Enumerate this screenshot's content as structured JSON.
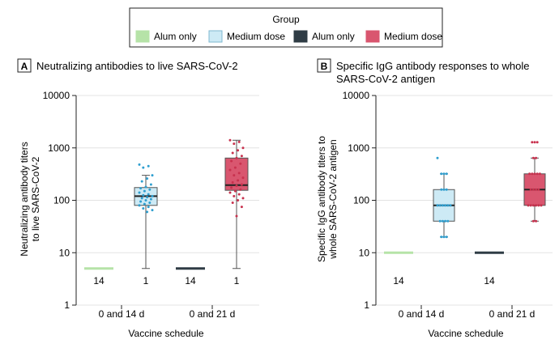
{
  "legend": {
    "title": "Group",
    "items": [
      {
        "label": "Alum only",
        "color": "#b6e3a8"
      },
      {
        "label": "Medium dose",
        "color": "#cdeaf5"
      },
      {
        "label": "Alum only",
        "color": "#2f3c45"
      },
      {
        "label": "Medium dose",
        "color": "#d9566f"
      }
    ]
  },
  "chart_data": [
    {
      "type": "box",
      "panel_label": "A",
      "title": "Neutralizing antibodies to live SARS-CoV-2",
      "ylabel_lines": [
        "Neutralizing antibody titers",
        "to live SARS-CoV-2"
      ],
      "xlabel": "Vaccine schedule",
      "yscale": "log",
      "ylim": [
        1,
        10000
      ],
      "yticks": [
        1,
        10,
        100,
        1000,
        10000
      ],
      "yticklabels": [
        "1",
        "10",
        "100",
        "1000",
        "10000"
      ],
      "categories": [
        "0 and 14 d",
        "0 and 21 d"
      ],
      "series": [
        {
          "group": "Alum only",
          "schedule": "0 and 14 d",
          "color": "#b6e3a8",
          "stroke": "#b6e3a8",
          "dot": "#b6e3a8",
          "q1": 5,
          "median": 5,
          "q3": 5,
          "whisker_low": 5,
          "whisker_high": 5,
          "count_label": "14",
          "points": []
        },
        {
          "group": "Medium dose",
          "schedule": "0 and 14 d",
          "color": "#cdeaf5",
          "stroke": "#555555",
          "dot": "#2f9fd0",
          "q1": 80,
          "median": 120,
          "q3": 175,
          "whisker_low": 5,
          "whisker_high": 300,
          "count_label": "1",
          "points": [
            480,
            450,
            420,
            300,
            260,
            230,
            200,
            180,
            170,
            160,
            150,
            140,
            130,
            125,
            120,
            115,
            110,
            105,
            100,
            95,
            90,
            85,
            80,
            75,
            70,
            65,
            60
          ]
        },
        {
          "group": "Alum only",
          "schedule": "0 and 21 d",
          "color": "#2f3c45",
          "stroke": "#2f3c45",
          "dot": "#2f3c45",
          "q1": 5,
          "median": 5,
          "q3": 5,
          "whisker_low": 5,
          "whisker_high": 5,
          "count_label": "14",
          "points": []
        },
        {
          "group": "Medium dose",
          "schedule": "0 and 21 d",
          "color": "#d9566f",
          "stroke": "#555555",
          "dot": "#c8324e",
          "q1": 155,
          "median": 195,
          "q3": 640,
          "whisker_low": 5,
          "whisker_high": 1400,
          "count_label": "1",
          "points": [
            1400,
            1300,
            1200,
            1000,
            900,
            800,
            700,
            640,
            560,
            500,
            420,
            380,
            330,
            300,
            270,
            240,
            220,
            200,
            190,
            175,
            160,
            150,
            140,
            130,
            120,
            110,
            100,
            90,
            75,
            50
          ]
        }
      ]
    },
    {
      "type": "box",
      "panel_label": "B",
      "title_lines": [
        "Specific IgG antibody responses to whole",
        "SARS-CoV-2 antigen"
      ],
      "ylabel_lines": [
        "Specific IgG antibody titers to",
        "whole SARS-CoV-2 antigen"
      ],
      "xlabel": "Vaccine schedule",
      "yscale": "log",
      "ylim": [
        1,
        10000
      ],
      "yticks": [
        1,
        10,
        100,
        1000,
        10000
      ],
      "yticklabels": [
        "1",
        "10",
        "100",
        "1000",
        "10000"
      ],
      "categories": [
        "0 and 14 d",
        "0 and 21 d"
      ],
      "series": [
        {
          "group": "Alum only",
          "schedule": "0 and 14 d",
          "color": "#b6e3a8",
          "stroke": "#b6e3a8",
          "dot": "#b6e3a8",
          "q1": 10,
          "median": 10,
          "q3": 10,
          "whisker_low": 10,
          "whisker_high": 10,
          "count_label": "14",
          "points": []
        },
        {
          "group": "Medium dose",
          "schedule": "0 and 14 d",
          "color": "#cdeaf5",
          "stroke": "#555555",
          "dot": "#2f9fd0",
          "q1": 40,
          "median": 80,
          "q3": 160,
          "whisker_low": 20,
          "whisker_high": 320,
          "count_label": "",
          "points": [
            640,
            320,
            320,
            320,
            160,
            160,
            160,
            80,
            80,
            80,
            80,
            80,
            80,
            40,
            40,
            40,
            40,
            20,
            20,
            20
          ]
        },
        {
          "group": "Alum only",
          "schedule": "0 and 21 d",
          "color": "#2f3c45",
          "stroke": "#2f3c45",
          "dot": "#2f3c45",
          "q1": 10,
          "median": 10,
          "q3": 10,
          "whisker_low": 10,
          "whisker_high": 10,
          "count_label": "14",
          "points": []
        },
        {
          "group": "Medium dose",
          "schedule": "0 and 21 d",
          "color": "#d9566f",
          "stroke": "#555555",
          "dot": "#c8324e",
          "q1": 80,
          "median": 160,
          "q3": 320,
          "whisker_low": 40,
          "whisker_high": 640,
          "count_label": "",
          "points": [
            1280,
            1280,
            1280,
            640,
            640,
            320,
            320,
            320,
            320,
            320,
            160,
            160,
            160,
            160,
            80,
            80,
            80,
            80,
            80,
            80,
            40,
            40
          ]
        }
      ]
    }
  ]
}
